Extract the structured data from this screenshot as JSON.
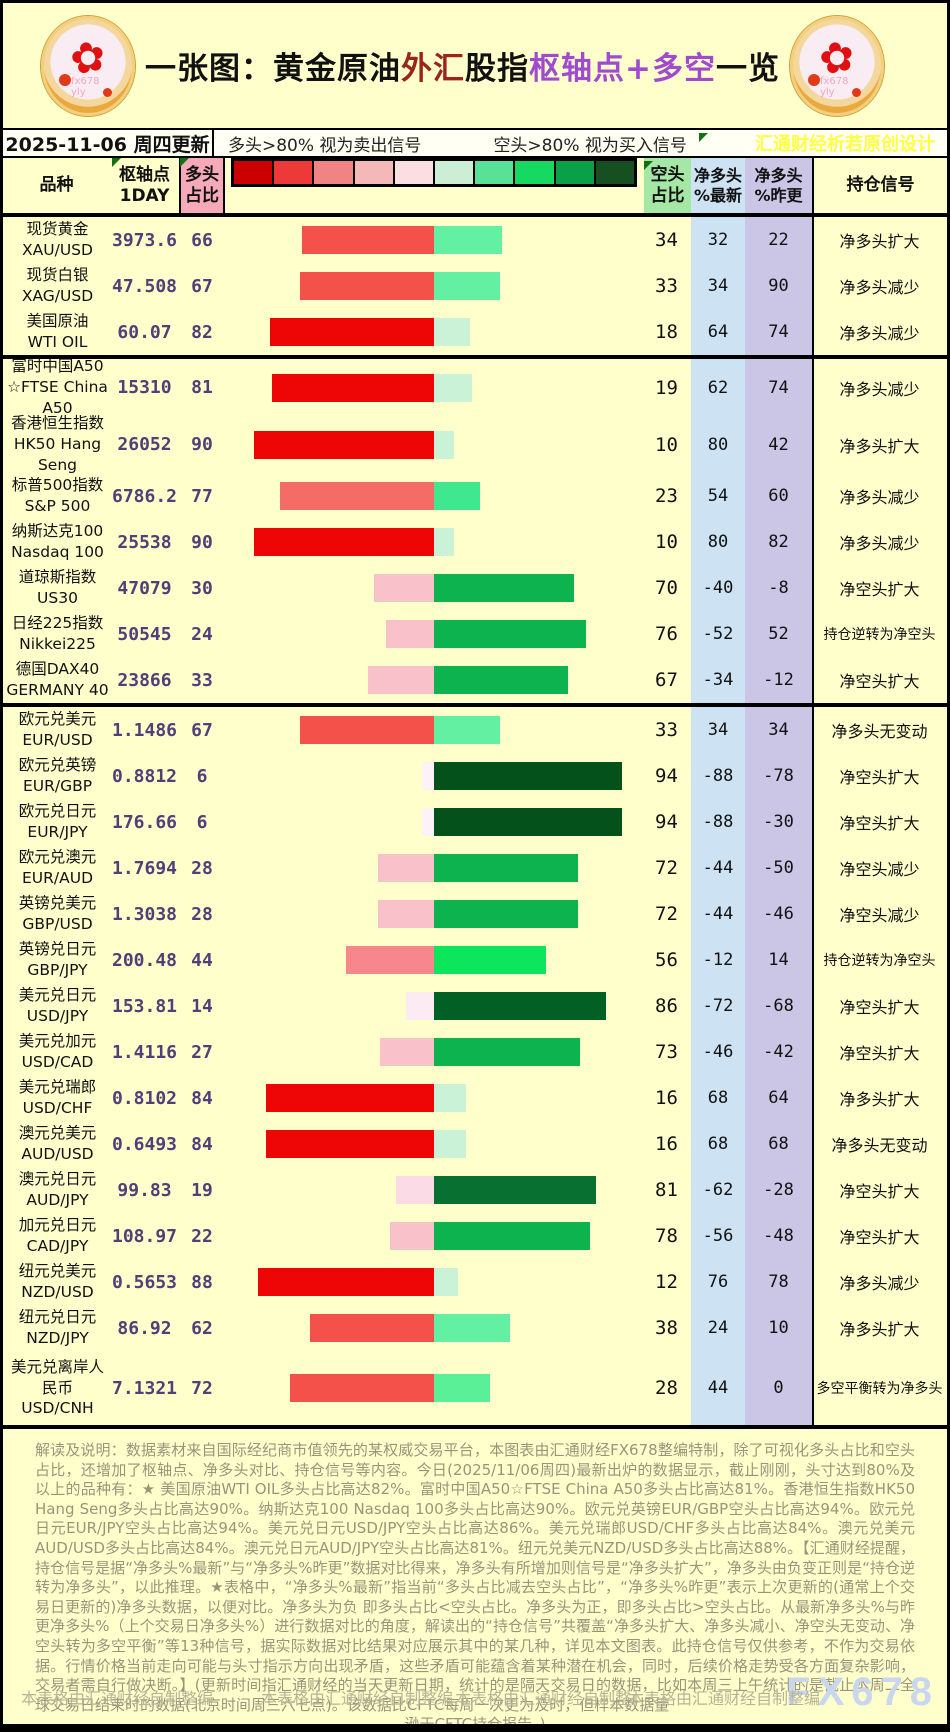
{
  "title": {
    "segments": [
      {
        "text": "一张图：黄金原油",
        "color": "#111111"
      },
      {
        "text": "外汇",
        "color": "#9b241f"
      },
      {
        "text": "股指",
        "color": "#111111"
      },
      {
        "text": "枢轴点+多空",
        "color": "#a04ad0"
      },
      {
        "text": "一览",
        "color": "#111111"
      }
    ]
  },
  "strip": {
    "date": "2025-11-06 周四更新",
    "legend_long": "多头>80% 视为卖出信号",
    "legend_short": "空头>80% 视为买入信号",
    "designer": "汇通财经析若原创设计"
  },
  "header": {
    "name": "品种",
    "pivot": "枢轴点\n1DAY",
    "long": "多头\n占比",
    "short": "空头\n占比",
    "net_new": "净多头\n%最新",
    "net_prev": "净多头\n%昨更",
    "signal": "持仓信号"
  },
  "legend_scale": {
    "colors": [
      "#cc0000",
      "#ee3939",
      "#f08484",
      "#f5b8b8",
      "#fbdee2",
      "#cbeed5",
      "#58e298",
      "#16d962",
      "#0aa048",
      "#175020"
    ]
  },
  "chart_data": {
    "type": "bar",
    "title": "黄金原油外汇股指 枢轴点+多空占比一览 (2025-11-06)",
    "note": "红色条=多头占比(向左), 绿色条=空头占比(向右), 条长=百分比, 中轴为0",
    "rows": [
      {
        "name_lines": [
          "现货黄金",
          "XAU/USD"
        ],
        "pivot": "3973.6",
        "long": 66,
        "short": 34,
        "net_new": 32,
        "net_prev": 22,
        "signal": "净多头扩大",
        "long_color": "#f4514b",
        "short_color": "#63f0a2",
        "divider_after": false
      },
      {
        "name_lines": [
          "现货白银",
          "XAG/USD"
        ],
        "pivot": "47.508",
        "long": 67,
        "short": 33,
        "net_new": 34,
        "net_prev": 90,
        "signal": "净多头减少",
        "long_color": "#f4514b",
        "short_color": "#63f0a2",
        "divider_after": false
      },
      {
        "name_lines": [
          "美国原油",
          "WTI OIL"
        ],
        "pivot": "60.07",
        "long": 82,
        "short": 18,
        "net_new": 64,
        "net_prev": 74,
        "signal": "净多头减少",
        "long_color": "#ee0606",
        "short_color": "#c9f2d6",
        "divider_after": true
      },
      {
        "name_lines": [
          "富时中国A50",
          "☆FTSE China",
          "A50"
        ],
        "pivot": "15310",
        "long": 81,
        "short": 19,
        "net_new": 62,
        "net_prev": 74,
        "signal": "净多头减少",
        "long_color": "#ee0606",
        "short_color": "#c9f2d6",
        "divider_after": false
      },
      {
        "name_lines": [
          "香港恒生指数",
          "HK50 Hang",
          "Seng"
        ],
        "pivot": "26052",
        "long": 90,
        "short": 10,
        "net_new": 80,
        "net_prev": 42,
        "signal": "净多头扩大",
        "long_color": "#ee0606",
        "short_color": "#c9f2d6",
        "divider_after": false
      },
      {
        "name_lines": [
          "标普500指数",
          "S&P 500"
        ],
        "pivot": "6786.2",
        "long": 77,
        "short": 23,
        "net_new": 54,
        "net_prev": 60,
        "signal": "净多头减少",
        "long_color": "#f56b66",
        "short_color": "#3fe88e",
        "divider_after": false
      },
      {
        "name_lines": [
          "纳斯达克100",
          "Nasdaq 100"
        ],
        "pivot": "25538",
        "long": 90,
        "short": 10,
        "net_new": 80,
        "net_prev": 82,
        "signal": "净多头减少",
        "long_color": "#ee0606",
        "short_color": "#c9f2d6",
        "divider_after": false
      },
      {
        "name_lines": [
          "道琼斯指数",
          "US30"
        ],
        "pivot": "47079",
        "long": 30,
        "short": 70,
        "net_new": -40,
        "net_prev": -8,
        "signal": "净空头扩大",
        "long_color": "#f9c2ca",
        "short_color": "#0cb34e",
        "divider_after": false
      },
      {
        "name_lines": [
          "日经225指数",
          "Nikkei225"
        ],
        "pivot": "50545",
        "long": 24,
        "short": 76,
        "net_new": -52,
        "net_prev": 52,
        "signal": "持仓逆转为净空头",
        "long_color": "#f9c2ca",
        "short_color": "#0cb34e",
        "divider_after": false
      },
      {
        "name_lines": [
          "德国DAX40",
          "GERMANY 40"
        ],
        "pivot": "23866",
        "long": 33,
        "short": 67,
        "net_new": -34,
        "net_prev": -12,
        "signal": "净空头扩大",
        "long_color": "#f9c2ca",
        "short_color": "#0cb34e",
        "divider_after": true
      },
      {
        "name_lines": [
          "欧元兑美元",
          "EUR/USD"
        ],
        "pivot": "1.1486",
        "long": 67,
        "short": 33,
        "net_new": 34,
        "net_prev": 34,
        "signal": "净多头无变动",
        "long_color": "#f4514b",
        "short_color": "#63f0a2",
        "divider_after": false
      },
      {
        "name_lines": [
          "欧元兑英镑",
          "EUR/GBP"
        ],
        "pivot": "0.8812",
        "long": 6,
        "short": 94,
        "net_new": -88,
        "net_prev": -78,
        "signal": "净空头扩大",
        "long_color": "#fdf2f7",
        "short_color": "#05511c",
        "divider_after": false
      },
      {
        "name_lines": [
          "欧元兑日元",
          "EUR/JPY"
        ],
        "pivot": "176.66",
        "long": 6,
        "short": 94,
        "net_new": -88,
        "net_prev": -30,
        "signal": "净空头扩大",
        "long_color": "#fdf2f7",
        "short_color": "#05511c",
        "divider_after": false
      },
      {
        "name_lines": [
          "欧元兑澳元",
          "EUR/AUD"
        ],
        "pivot": "1.7694",
        "long": 28,
        "short": 72,
        "net_new": -44,
        "net_prev": -50,
        "signal": "净空头减少",
        "long_color": "#f9c2ca",
        "short_color": "#0cb34e",
        "divider_after": false
      },
      {
        "name_lines": [
          "英镑兑美元",
          "GBP/USD"
        ],
        "pivot": "1.3038",
        "long": 28,
        "short": 72,
        "net_new": -44,
        "net_prev": -46,
        "signal": "净空头减少",
        "long_color": "#f9c2ca",
        "short_color": "#0cb34e",
        "divider_after": false
      },
      {
        "name_lines": [
          "英镑兑日元",
          "GBP/JPY"
        ],
        "pivot": "200.48",
        "long": 44,
        "short": 56,
        "net_new": -12,
        "net_prev": 14,
        "signal": "持仓逆转为净空头",
        "long_color": "#f8878d",
        "short_color": "#0ce55c",
        "divider_after": false
      },
      {
        "name_lines": [
          "美元兑日元",
          "USD/JPY"
        ],
        "pivot": "153.81",
        "long": 14,
        "short": 86,
        "net_new": -72,
        "net_prev": -68,
        "signal": "净空头扩大",
        "long_color": "#fcebf2",
        "short_color": "#026025",
        "divider_after": false
      },
      {
        "name_lines": [
          "美元兑加元",
          "USD/CAD"
        ],
        "pivot": "1.4116",
        "long": 27,
        "short": 73,
        "net_new": -46,
        "net_prev": -42,
        "signal": "净空头扩大",
        "long_color": "#f9c2ca",
        "short_color": "#0cb34e",
        "divider_after": false
      },
      {
        "name_lines": [
          "美元兑瑞郎",
          "USD/CHF"
        ],
        "pivot": "0.8102",
        "long": 84,
        "short": 16,
        "net_new": 68,
        "net_prev": 64,
        "signal": "净多头扩大",
        "long_color": "#ee0606",
        "short_color": "#c9f2d6",
        "divider_after": false
      },
      {
        "name_lines": [
          "澳元兑美元",
          "AUD/USD"
        ],
        "pivot": "0.6493",
        "long": 84,
        "short": 16,
        "net_new": 68,
        "net_prev": 68,
        "signal": "净多头无变动",
        "long_color": "#ee0606",
        "short_color": "#c9f2d6",
        "divider_after": false
      },
      {
        "name_lines": [
          "澳元兑日元",
          "AUD/JPY"
        ],
        "pivot": "99.83",
        "long": 19,
        "short": 81,
        "net_new": -62,
        "net_prev": -28,
        "signal": "净空头扩大",
        "long_color": "#fbdce6",
        "short_color": "#087030",
        "divider_after": false
      },
      {
        "name_lines": [
          "加元兑日元",
          "CAD/JPY"
        ],
        "pivot": "108.97",
        "long": 22,
        "short": 78,
        "net_new": -56,
        "net_prev": -48,
        "signal": "净空头扩大",
        "long_color": "#f9c2ca",
        "short_color": "#0cb34e",
        "divider_after": false
      },
      {
        "name_lines": [
          "纽元兑美元",
          "NZD/USD"
        ],
        "pivot": "0.5653",
        "long": 88,
        "short": 12,
        "net_new": 76,
        "net_prev": 78,
        "signal": "净多头减少",
        "long_color": "#ee0606",
        "short_color": "#c9f2d6",
        "divider_after": false
      },
      {
        "name_lines": [
          "纽元兑日元",
          "NZD/JPY"
        ],
        "pivot": "86.92",
        "long": 62,
        "short": 38,
        "net_new": 24,
        "net_prev": 10,
        "signal": "净多头扩大",
        "long_color": "#f4514b",
        "short_color": "#63f0a2",
        "divider_after": false
      },
      {
        "name_lines": [
          "美元兑离岸人",
          "民币",
          "USD/CNH"
        ],
        "pivot": "7.1321",
        "long": 72,
        "short": 28,
        "net_new": 44,
        "net_prev": 0,
        "signal": "多空平衡转为净多头",
        "long_color": "#f4514b",
        "short_color": "#59f097",
        "divider_after": false
      }
    ]
  },
  "footer": {
    "paragraph": "解读及说明：数据素材来自国际经纪商市值领先的某权威交易平台，本图表由汇通财经FX678整编特制，除了可视化多头占比和空头占比，还增加了枢轴点、净多头对比、持仓信号等内容。今日(2025/11/06周四)最新出炉的数据显示，截止刚刚，头寸达到80%及以上的品种有：★ 美国原油WTI OIL多头占比高达82%。富时中国A50☆FTSE China A50多头占比高达81%。香港恒生指数HK50 Hang Seng多头占比高达90%。纳斯达克100 Nasdaq 100多头占比高达90%。欧元兑英镑EUR/GBP空头占比高达94%。欧元兑日元EUR/JPY空头占比高达94%。美元兑日元USD/JPY空头占比高达86%。美元兑瑞郎USD/CHF多头占比高达84%。澳元兑美元AUD/USD多头占比高达84%。澳元兑日元AUD/JPY空头占比高达81%。纽元兑美元NZD/USD多头占比高达88%。【汇通财经提醒，持仓信号是据“净多头%最新”与“净多头%昨更”数据对比得来，净多头有所增加则信号是“净多头扩大”，净多头由负变正则是“持仓逆转为净多头”，以此推理。★表格中，“净多头%最新”指当前“多头占比减去空头占比”，“净多头%昨更”表示上次更新的(通常上个交易日更新的)净多头数据，以便对比。净多头为负 即多头占比<空头占比。净多头为正，即多头占比>空头占比。从最新净多头%与昨更净多头%（上个交易日净多头%）进行数据对比的角度，解读出的“持仓信号”共覆盖“净多头扩大、净多头减小、净空头无变动、净空头转为多空平衡”等13种信号，据实际数据对比结果对应展示其中的某几种，详见本文图表。此持仓信号仅供参考，不作为交易依据。行情价格当前走向可能与头寸指示方向出现矛盾，这些矛盾可能蕴含着某种潜在机会，同时，后续价格走势受各方面复杂影响，交易者需自行做决断。】(更新时间指汇通财经的当天更新日期，统计的是隔天交易日的数据，比如本周三上午统计的是截止本周二全球交易日结束时的数据(北京时间周三六七点)。该数据比CFTC每周一次更为及时，但样本数据量",
    "tail": "逊于CFTC持仓报告。)",
    "credits": [
      "本表格由汇通财经自制整编",
      "本表格由汇通财经自制整编",
      "本表格由汇通财经自制整:",
      "本表格由汇通财经自制整编"
    ],
    "watermark": "FX678"
  }
}
